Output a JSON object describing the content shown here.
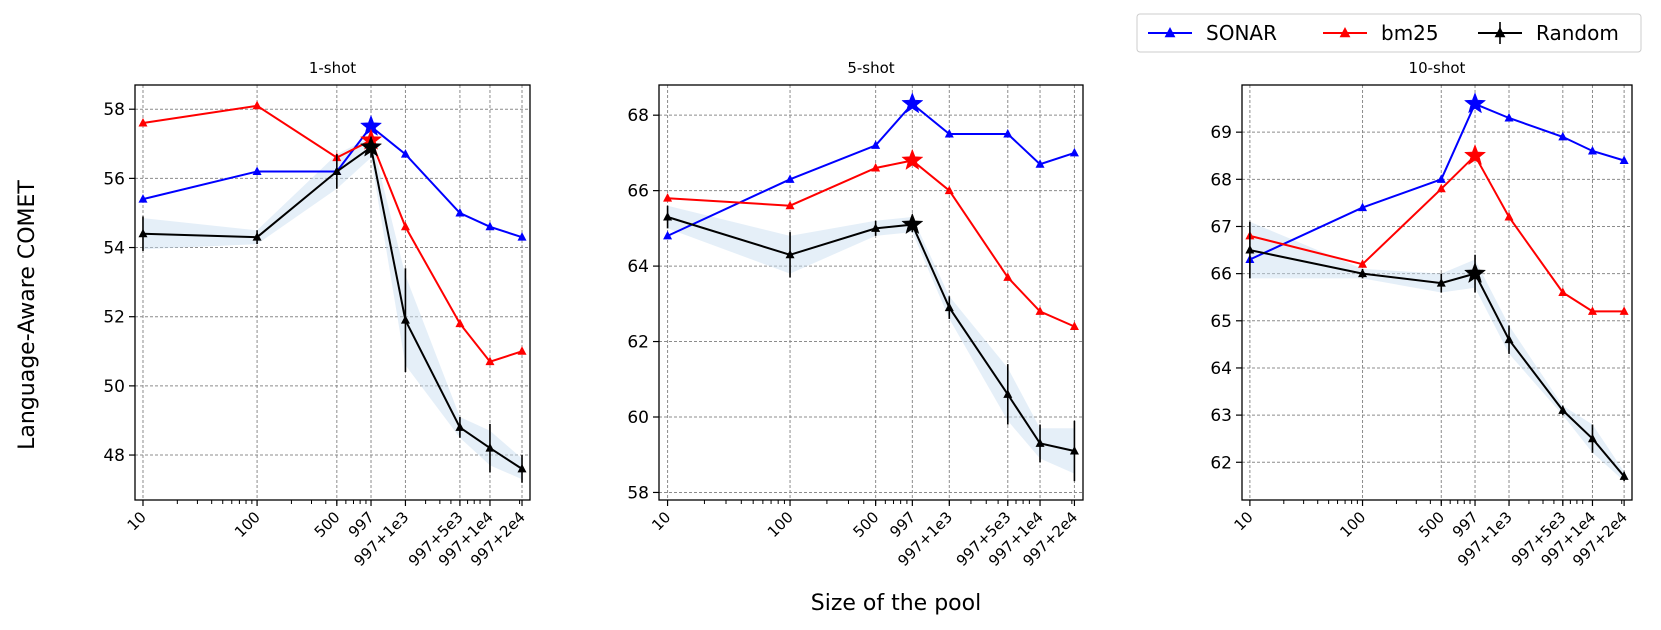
{
  "figure": {
    "ylabel": "Language-Aware COMET",
    "xlabel": "Size of the pool"
  },
  "legend": {
    "entries": [
      {
        "name": "SONAR",
        "color": "#0000ff",
        "marker": "triangle"
      },
      {
        "name": "bm25",
        "color": "#ff0000",
        "marker": "triangle"
      },
      {
        "name": "Random",
        "color": "#000000",
        "marker": "triangle-errorbar"
      }
    ]
  },
  "chart_data": [
    {
      "type": "line",
      "title": "1-shot",
      "xlabel": "Size of the pool",
      "ylabel": "Language-Aware COMET",
      "x": [
        10,
        100,
        500,
        997,
        1997,
        5997,
        10997,
        20997
      ],
      "xticklabels": [
        "10",
        "100",
        "500",
        "997",
        "997+1e3",
        "997+5e3",
        "997+1e4",
        "997+2e4"
      ],
      "yticks": [
        48,
        50,
        52,
        54,
        56,
        58
      ],
      "ylim": [
        46.7,
        58.7
      ],
      "grid": true,
      "star_index": 3,
      "series": [
        {
          "name": "SONAR",
          "color": "#0000ff",
          "values": [
            55.4,
            56.2,
            56.2,
            57.5,
            56.7,
            55.0,
            54.6,
            54.3
          ]
        },
        {
          "name": "bm25",
          "color": "#ff0000",
          "values": [
            57.6,
            58.1,
            56.6,
            57.1,
            54.6,
            51.8,
            50.7,
            51.0
          ]
        },
        {
          "name": "Random",
          "color": "#000000",
          "values": [
            54.4,
            54.3,
            56.2,
            56.9,
            51.9,
            48.8,
            48.2,
            47.6
          ],
          "errors": [
            0.5,
            0.2,
            0.5,
            0.3,
            1.5,
            0.3,
            0.7,
            0.4
          ],
          "band": [
            0.45,
            0.2,
            0.5,
            0.3,
            1.3,
            0.3,
            0.5,
            0.3
          ]
        }
      ]
    },
    {
      "type": "line",
      "title": "5-shot",
      "xlabel": "Size of the pool",
      "ylabel": "Language-Aware COMET",
      "x": [
        10,
        100,
        500,
        997,
        1997,
        5997,
        10997,
        20997
      ],
      "xticklabels": [
        "10",
        "100",
        "500",
        "997",
        "997+1e3",
        "997+5e3",
        "997+1e4",
        "997+2e4"
      ],
      "yticks": [
        58,
        60,
        62,
        64,
        66,
        68
      ],
      "ylim": [
        57.8,
        68.8
      ],
      "grid": true,
      "star_index": 3,
      "series": [
        {
          "name": "SONAR",
          "color": "#0000ff",
          "values": [
            64.8,
            66.3,
            67.2,
            68.3,
            67.5,
            67.5,
            66.7,
            67.0
          ]
        },
        {
          "name": "bm25",
          "color": "#ff0000",
          "values": [
            65.8,
            65.6,
            66.6,
            66.8,
            66.0,
            63.7,
            62.8,
            62.4
          ]
        },
        {
          "name": "Random",
          "color": "#000000",
          "values": [
            65.3,
            64.3,
            65.0,
            65.1,
            62.9,
            60.6,
            59.3,
            59.1
          ],
          "errors": [
            0.3,
            0.6,
            0.2,
            0.2,
            0.3,
            0.8,
            0.5,
            0.8
          ],
          "band": [
            0.3,
            0.5,
            0.2,
            0.2,
            0.3,
            0.7,
            0.4,
            0.6
          ]
        }
      ]
    },
    {
      "type": "line",
      "title": "10-shot",
      "xlabel": "Size of the pool",
      "ylabel": "Language-Aware COMET",
      "x": [
        10,
        100,
        500,
        997,
        1997,
        5997,
        10997,
        20997
      ],
      "xticklabels": [
        "10",
        "100",
        "500",
        "997",
        "997+1e3",
        "997+5e3",
        "997+1e4",
        "997+2e4"
      ],
      "yticks": [
        62,
        63,
        64,
        65,
        66,
        67,
        68,
        69
      ],
      "ylim": [
        61.2,
        70.0
      ],
      "grid": true,
      "star_index": 3,
      "series": [
        {
          "name": "SONAR",
          "color": "#0000ff",
          "values": [
            66.3,
            67.4,
            68.0,
            69.6,
            69.3,
            68.9,
            68.6,
            68.4
          ]
        },
        {
          "name": "bm25",
          "color": "#ff0000",
          "values": [
            66.8,
            66.2,
            67.8,
            68.5,
            67.2,
            65.6,
            65.2,
            65.2
          ]
        },
        {
          "name": "Random",
          "color": "#000000",
          "values": [
            66.5,
            66.0,
            65.8,
            66.0,
            64.6,
            63.1,
            62.5,
            61.7
          ],
          "errors": [
            0.6,
            0.1,
            0.2,
            0.4,
            0.3,
            0.1,
            0.3,
            0.1
          ],
          "band": [
            0.6,
            0.1,
            0.2,
            0.3,
            0.3,
            0.1,
            0.3,
            0.1
          ]
        }
      ]
    }
  ]
}
